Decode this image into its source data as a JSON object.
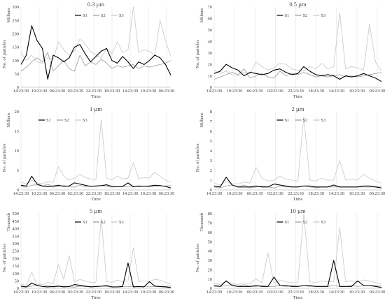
{
  "chart_data": [
    {
      "type": "line",
      "title": "0.3 µm",
      "unit": "Millions",
      "ylabel": "No. of particles",
      "xlabel": "Time",
      "ylim": [
        0,
        300
      ],
      "yticks": [
        0,
        50,
        100,
        150,
        200,
        250,
        300
      ],
      "xticks": [
        "14:23:30",
        "10:23:30",
        "06:23:30",
        "02:23:30",
        "22:23:30",
        "18:23:30",
        "14:23:30",
        "10:23:30",
        "06:23:30"
      ],
      "grid": "vertical",
      "legend": "top-center",
      "series": [
        {
          "name": "S1",
          "color": "#000000",
          "values": [
            85,
            120,
            230,
            175,
            145,
            30,
            120,
            110,
            95,
            110,
            150,
            160,
            125,
            95,
            115,
            135,
            145,
            100,
            90,
            115,
            95,
            70,
            95,
            85,
            100,
            120,
            110,
            85,
            45
          ]
        },
        {
          "name": "S2",
          "color": "#9a9a9a",
          "values": [
            60,
            75,
            95,
            110,
            95,
            130,
            60,
            80,
            100,
            70,
            60,
            120,
            80,
            95,
            85,
            105,
            90,
            70,
            80,
            75,
            80,
            85,
            70,
            80,
            75,
            80,
            85,
            90,
            100
          ]
        },
        {
          "name": "S3",
          "color": "#c8c8c8",
          "values": [
            130,
            100,
            120,
            95,
            90,
            110,
            105,
            170,
            140,
            120,
            135,
            180,
            160,
            135,
            120,
            110,
            145,
            125,
            170,
            130,
            140,
            390,
            130,
            140,
            135,
            120,
            250,
            175,
            115
          ]
        }
      ]
    },
    {
      "type": "line",
      "title": "0.5 µm",
      "unit": "Millions",
      "ylabel": "No. of particles",
      "xlabel": "Time",
      "ylim": [
        0,
        70
      ],
      "yticks": [
        0,
        10,
        20,
        30,
        40,
        50,
        60,
        70
      ],
      "xticks": [
        "14:23:30",
        "10:23:30",
        "06:23:30",
        "02:23:30",
        "22:23:30",
        "18:23:30",
        "14:23:30",
        "10:23:30",
        "06:23:30"
      ],
      "grid": "vertical",
      "legend": "top-center",
      "series": [
        {
          "name": "S1",
          "color": "#000000",
          "values": [
            12,
            14,
            20,
            17,
            15,
            10,
            13,
            12,
            11,
            12,
            15,
            16,
            13,
            11,
            12,
            18,
            14,
            11,
            10,
            11,
            10,
            7,
            10,
            9,
            10,
            12,
            10,
            8,
            5
          ]
        },
        {
          "name": "S2",
          "color": "#9a9a9a",
          "values": [
            7,
            9,
            11,
            13,
            11,
            16,
            8,
            10,
            12,
            9,
            8,
            14,
            10,
            12,
            11,
            13,
            11,
            9,
            10,
            9,
            10,
            11,
            9,
            10,
            9,
            10,
            11,
            12,
            13
          ]
        },
        {
          "name": "S3",
          "color": "#c8c8c8",
          "values": [
            15,
            12,
            14,
            11,
            10,
            13,
            12,
            22,
            18,
            15,
            17,
            21,
            20,
            16,
            15,
            14,
            18,
            16,
            21,
            16,
            18,
            65,
            16,
            18,
            17,
            15,
            55,
            22,
            14
          ]
        }
      ]
    },
    {
      "type": "line",
      "title": "1 µm",
      "unit": "Millions",
      "ylabel": "No. of particles",
      "xlabel": "Time",
      "ylim": [
        0,
        20
      ],
      "yticks": [
        0,
        5,
        10,
        15,
        20
      ],
      "xticks": [
        "14:23:30",
        "10:23:30",
        "06:23:30",
        "02:23:30",
        "22:23:30",
        "18:23:30",
        "14:23:30",
        "10:23:30",
        "06:23:30"
      ],
      "grid": "vertical",
      "legend": "top-left",
      "series": [
        {
          "name": "S1",
          "color": "#000000",
          "values": [
            1.2,
            1.0,
            3.5,
            1.5,
            1.0,
            0.8,
            1.0,
            1.2,
            0.9,
            1.0,
            1.8,
            1.5,
            1.2,
            0.9,
            1.0,
            1.1,
            1.3,
            0.9,
            0.8,
            0.9,
            1.8,
            0.8,
            1.0,
            0.9,
            1.0,
            1.2,
            1.1,
            0.9,
            0.5
          ]
        },
        {
          "name": "S2",
          "color": "#9a9a9a",
          "values": [
            0.8,
            0.7,
            1.2,
            1.3,
            0.9,
            1.5,
            0.7,
            0.9,
            1.1,
            0.8,
            0.7,
            1.2,
            0.8,
            1.0,
            0.9,
            1.1,
            0.9,
            0.7,
            0.8,
            0.8,
            0.9,
            0.9,
            0.8,
            0.9,
            0.8,
            0.9,
            1.0,
            1.0,
            1.1
          ]
        },
        {
          "name": "S3",
          "color": "#c8c8c8",
          "values": [
            2.0,
            1.5,
            2.5,
            1.8,
            1.6,
            2.2,
            1.9,
            6.0,
            3.5,
            2.5,
            3.0,
            4.0,
            3.2,
            2.8,
            2.6,
            18.0,
            3.0,
            2.6,
            3.5,
            2.8,
            3.0,
            7.0,
            2.8,
            3.2,
            3.0,
            4.5,
            3.5,
            2.5,
            2.0
          ]
        }
      ]
    },
    {
      "type": "line",
      "title": "2 µm",
      "unit": "Millions",
      "ylabel": "No. of particles",
      "xlabel": "Time",
      "ylim": [
        0,
        8
      ],
      "yticks": [
        0,
        1,
        2,
        3,
        4,
        5,
        6,
        7,
        8
      ],
      "xticks": [
        "14:23:30",
        "10:23:30",
        "06:23:30",
        "02:23:30",
        "22:23:30",
        "18:23:30",
        "14:23:30",
        "10:23:30",
        "06:23:30"
      ],
      "grid": "vertical",
      "legend": "top-center",
      "series": [
        {
          "name": "S1",
          "color": "#000000",
          "values": [
            0.4,
            0.3,
            1.3,
            0.5,
            0.3,
            0.3,
            0.3,
            0.4,
            0.3,
            0.3,
            0.6,
            0.5,
            0.4,
            0.3,
            0.3,
            0.4,
            0.4,
            0.3,
            0.3,
            0.3,
            0.5,
            0.3,
            0.3,
            0.3,
            0.3,
            0.4,
            0.4,
            0.3,
            0.2
          ]
        },
        {
          "name": "S2",
          "color": "#9a9a9a",
          "values": [
            0.3,
            0.2,
            0.4,
            0.5,
            0.3,
            0.5,
            0.2,
            0.3,
            0.4,
            0.3,
            0.2,
            0.4,
            0.3,
            0.3,
            0.3,
            0.4,
            0.3,
            0.2,
            0.3,
            0.3,
            0.3,
            0.3,
            0.3,
            0.3,
            0.3,
            0.3,
            0.3,
            0.3,
            0.4
          ]
        },
        {
          "name": "S3",
          "color": "#c8c8c8",
          "values": [
            0.7,
            0.5,
            0.9,
            0.6,
            0.6,
            0.8,
            0.7,
            2.3,
            1.2,
            0.9,
            1.0,
            1.4,
            1.1,
            1.0,
            0.9,
            7.5,
            1.0,
            0.9,
            1.2,
            1.0,
            1.0,
            3.0,
            1.0,
            1.1,
            1.0,
            1.6,
            1.2,
            0.9,
            0.7
          ]
        }
      ]
    },
    {
      "type": "line",
      "title": "5 µm",
      "unit": "Thousands",
      "ylabel": "No. of particles",
      "xlabel": "Time",
      "ylim": [
        0,
        500
      ],
      "yticks": [
        0,
        50,
        100,
        150,
        200,
        250,
        300,
        350,
        400,
        450,
        500
      ],
      "xticks": [
        "14:23:30",
        "10:23:30",
        "06:23:30",
        "02:23:30",
        "22:23:30",
        "18:23:30",
        "14:23:30",
        "10:23:30",
        "06:23:30"
      ],
      "grid": "vertical",
      "legend": "top-center",
      "series": [
        {
          "name": "S1",
          "color": "#000000",
          "values": [
            15,
            10,
            35,
            20,
            12,
            10,
            12,
            15,
            10,
            12,
            25,
            20,
            15,
            10,
            12,
            14,
            18,
            10,
            10,
            12,
            170,
            10,
            12,
            10,
            45,
            15,
            12,
            10,
            5
          ]
        },
        {
          "name": "S2",
          "color": "#9a9a9a",
          "values": [
            10,
            8,
            15,
            18,
            12,
            20,
            8,
            12,
            15,
            10,
            8,
            15,
            10,
            13,
            12,
            15,
            12,
            8,
            10,
            10,
            12,
            12,
            10,
            12,
            10,
            12,
            13,
            13,
            15
          ]
        },
        {
          "name": "S3",
          "color": "#c8c8c8",
          "values": [
            30,
            20,
            110,
            25,
            25,
            40,
            30,
            160,
            60,
            220,
            45,
            60,
            50,
            40,
            40,
            470,
            45,
            40,
            55,
            45,
            50,
            270,
            45,
            50,
            45,
            60,
            55,
            40,
            30
          ]
        }
      ]
    },
    {
      "type": "line",
      "title": "10 µm",
      "unit": "Thousands",
      "ylabel": "No. of particles",
      "xlabel": "Time",
      "ylim": [
        0,
        80
      ],
      "yticks": [
        0,
        10,
        20,
        30,
        40,
        50,
        60,
        70,
        80
      ],
      "xticks": [
        "14:23:30",
        "10:23:30",
        "06:23:30",
        "02:23:30",
        "22:23:30",
        "18:23:30",
        "14:23:30",
        "10:23:30",
        "06:23:30"
      ],
      "grid": "vertical",
      "legend": "top-center",
      "series": [
        {
          "name": "S1",
          "color": "#000000",
          "values": [
            3,
            2,
            8,
            3,
            2,
            2,
            2,
            3,
            2,
            2,
            12,
            3,
            3,
            2,
            2,
            3,
            3,
            2,
            2,
            2,
            30,
            2,
            2,
            2,
            8,
            3,
            3,
            2,
            1
          ]
        },
        {
          "name": "S2",
          "color": "#9a9a9a",
          "values": [
            2,
            2,
            3,
            4,
            2,
            4,
            2,
            2,
            3,
            2,
            2,
            3,
            2,
            3,
            2,
            3,
            2,
            2,
            2,
            2,
            3,
            2,
            2,
            3,
            2,
            3,
            3,
            3,
            3
          ]
        },
        {
          "name": "S3",
          "color": "#c8c8c8",
          "values": [
            5,
            4,
            8,
            5,
            4,
            6,
            5,
            10,
            6,
            38,
            6,
            9,
            7,
            6,
            6,
            80,
            7,
            6,
            8,
            7,
            7,
            65,
            7,
            8,
            7,
            9,
            8,
            6,
            5
          ]
        }
      ]
    }
  ]
}
